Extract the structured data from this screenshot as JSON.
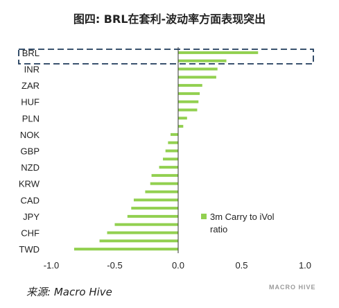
{
  "chart_data": {
    "type": "bar",
    "orientation": "horizontal",
    "title": "图四: BRL在套利-波动率方面表现突出",
    "categories": [
      "BRL",
      "",
      "INR",
      "",
      "ZAR",
      "",
      "HUF",
      "",
      "PLN",
      "",
      "NOK",
      "",
      "GBP",
      "",
      "NZD",
      "",
      "KRW",
      "",
      "CAD",
      "",
      "JPY",
      "",
      "CHF",
      "",
      "TWD"
    ],
    "series": [
      {
        "name": "3m Carry to iVol ratio",
        "color": "#92D050",
        "values": [
          0.63,
          0.38,
          0.31,
          0.3,
          0.19,
          0.17,
          0.16,
          0.15,
          0.07,
          0.04,
          -0.06,
          -0.08,
          -0.1,
          -0.12,
          -0.15,
          -0.21,
          -0.22,
          -0.26,
          -0.35,
          -0.37,
          -0.4,
          -0.5,
          -0.56,
          -0.62,
          -0.82
        ]
      }
    ],
    "xlim": [
      -1.0,
      1.0
    ],
    "xticks": [
      "-1.0",
      "-0.5",
      "0.0",
      "0.5",
      "1.0"
    ],
    "legend_position": "inside-right",
    "highlight_category": "BRL",
    "grid": false
  },
  "legend": {
    "line1": "3m Carry to iVol",
    "line2": "ratio"
  },
  "source": "来源: Macro Hive",
  "watermark": "MACRO HIVE"
}
